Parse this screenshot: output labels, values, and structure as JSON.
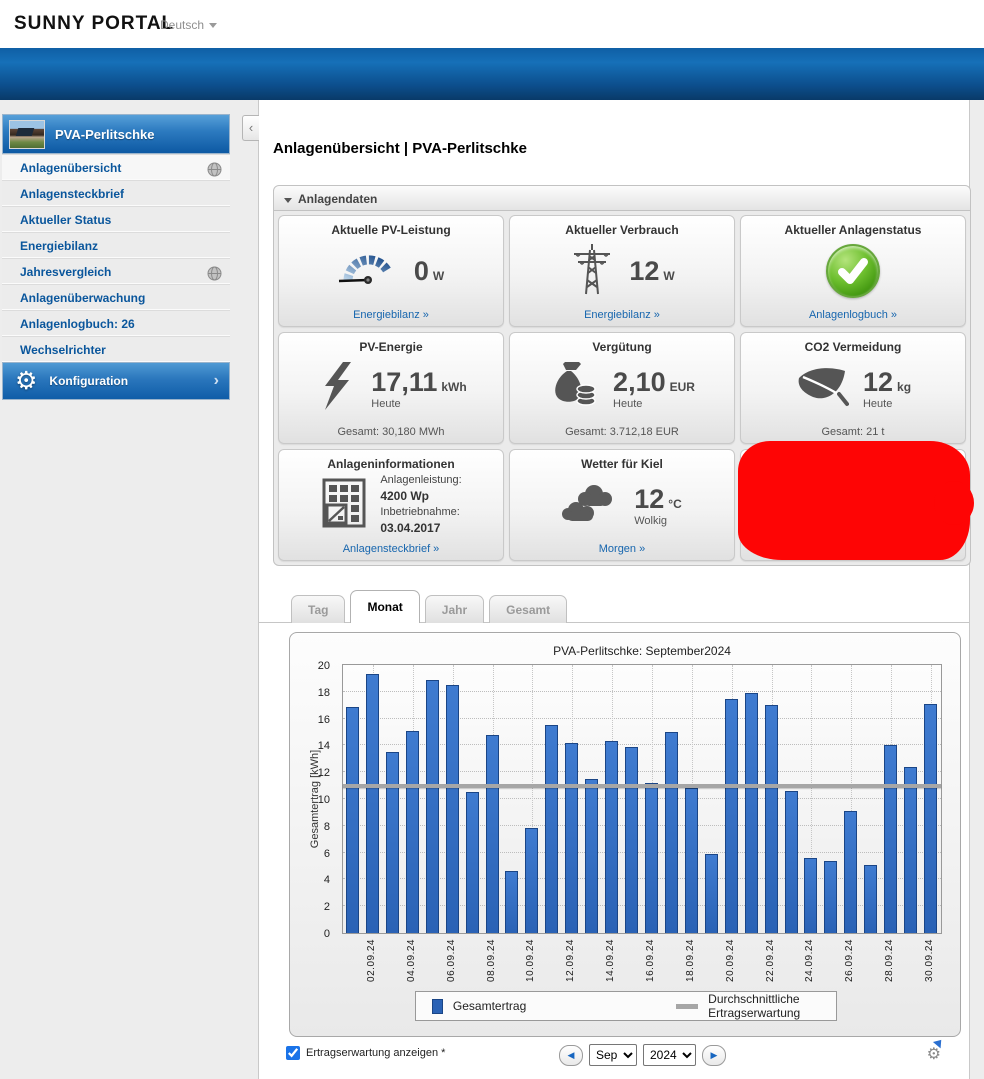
{
  "header": {
    "logo": "SUNNY PORTAL",
    "language": "Deutsch"
  },
  "sidebar": {
    "plant_name": "PVA-Perlitschke",
    "items": [
      {
        "label": "Anlagenübersicht",
        "globe": true,
        "active": true
      },
      {
        "label": "Anlagensteckbrief"
      },
      {
        "label": "Aktueller Status"
      },
      {
        "label": "Energiebilanz"
      },
      {
        "label": "Jahresvergleich",
        "globe": true
      },
      {
        "label": "Anlagenüberwachung"
      },
      {
        "label": "Anlagenlogbuch: 26"
      },
      {
        "label": "Wechselrichter"
      }
    ],
    "config_label": "Konfiguration"
  },
  "main": {
    "page_title": "Anlagenübersicht | PVA-Perlitschke",
    "panel_title": "Anlagendaten",
    "tiles": [
      {
        "icon": "gauge-icon",
        "title": "Aktuelle PV-Leistung",
        "value": "0",
        "unit": "W",
        "link": "Energiebilanz »"
      },
      {
        "icon": "power-tower-icon",
        "title": "Aktueller Verbrauch",
        "value": "12",
        "unit": "W",
        "link": "Energiebilanz »"
      },
      {
        "icon": "status-ok-icon",
        "title": "Aktueller Anlagenstatus",
        "link": "Anlagenlogbuch »"
      },
      {
        "icon": "lightning-icon",
        "title": "PV-Energie",
        "value": "17,11",
        "unit": "kWh",
        "subtitle": "Heute",
        "footer": "Gesamt: 30,180 MWh"
      },
      {
        "icon": "money-bag-icon",
        "title": "Vergütung",
        "value": "2,10",
        "unit": "EUR",
        "subtitle": "Heute",
        "footer": "Gesamt: 3.712,18 EUR"
      },
      {
        "icon": "leaf-icon",
        "title": "CO2 Vermeidung",
        "value": "12",
        "unit": "kg",
        "subtitle": "Heute",
        "footer": "Gesamt: 21 t"
      },
      {
        "icon": "solar-panel-icon",
        "title": "Anlageninformationen",
        "info": [
          {
            "label": "Anlagenleistung:",
            "value": "4200 Wp"
          },
          {
            "label": "Inbetriebnahme:",
            "value": "03.04.2017"
          }
        ],
        "link": "Anlagensteckbrief »"
      },
      {
        "icon": "clouds-icon",
        "title": "Wetter für Kiel",
        "value": "12",
        "unit": "°C",
        "subtitle": "Wolkig",
        "link": "Morgen »"
      },
      {
        "redacted": true
      }
    ],
    "tabs": {
      "items": [
        "Tag",
        "Monat",
        "Jahr",
        "Gesamt"
      ],
      "active": "Monat"
    },
    "controls": {
      "checkbox_label": "Ertragserwartung anzeigen *",
      "checkbox_checked": true,
      "month": "Sep",
      "year": "2024"
    }
  },
  "chart_data": {
    "type": "bar",
    "title": "PVA-Perlitschke: September2024",
    "ylabel": "Gesamtertrag [kWh]",
    "ylim": [
      0,
      20
    ],
    "ytick_step": 2,
    "grid": true,
    "legend": [
      "Gesamtertrag",
      "Durchschnittliche Ertragserwartung"
    ],
    "legend_position": "bottom",
    "categories": [
      "01.09.24",
      "02.09.24",
      "03.09.24",
      "04.09.24",
      "05.09.24",
      "06.09.24",
      "07.09.24",
      "08.09.24",
      "09.09.24",
      "10.09.24",
      "11.09.24",
      "12.09.24",
      "13.09.24",
      "14.09.24",
      "15.09.24",
      "16.09.24",
      "17.09.24",
      "18.09.24",
      "19.09.24",
      "20.09.24",
      "21.09.24",
      "22.09.24",
      "23.09.24",
      "24.09.24",
      "25.09.24",
      "26.09.24",
      "27.09.24",
      "28.09.24",
      "29.09.24",
      "30.09.24"
    ],
    "x_labels_shown": [
      "02.09.24",
      "04.09.24",
      "06.09.24",
      "08.09.24",
      "10.09.24",
      "12.09.24",
      "14.09.24",
      "16.09.24",
      "18.09.24",
      "20.09.24",
      "22.09.24",
      "24.09.24",
      "26.09.24",
      "28.09.24",
      "30.09.24"
    ],
    "values": [
      16.9,
      19.3,
      13.5,
      15.1,
      18.9,
      18.5,
      10.5,
      14.8,
      4.6,
      7.8,
      15.5,
      14.2,
      11.5,
      14.3,
      13.9,
      11.2,
      15.0,
      10.8,
      5.9,
      17.5,
      17.9,
      17.0,
      10.6,
      5.6,
      5.4,
      9.1,
      5.1,
      14.0,
      12.4,
      17.1
    ],
    "expectation_value": 11.0,
    "bar_color": "#2a62b5",
    "expectation_color": "#a6a6a6"
  }
}
